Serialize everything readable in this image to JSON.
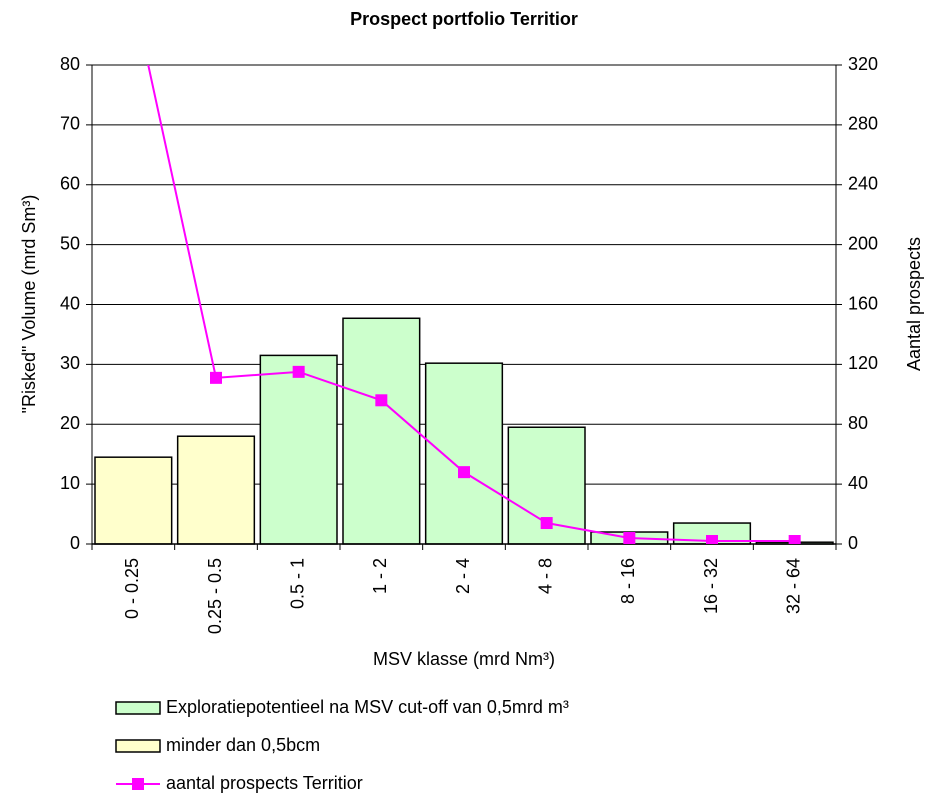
{
  "chart_data": {
    "type": "bar",
    "title": "Prospect portfolio Territior",
    "x_label": "MSV klasse (mrd Nm³)",
    "y_label": "\"Risked\" Volume  (mrd Sm³)",
    "y2_label": "Aantal prospects",
    "categories": [
      "0 - 0.25",
      "0.25 - 0.5",
      "0.5 - 1",
      "1 - 2",
      "2 - 4",
      "4 - 8",
      "8 - 16",
      "16 - 32",
      "32 - 64"
    ],
    "ylim": [
      0,
      80
    ],
    "yticks": [
      0,
      10,
      20,
      30,
      40,
      50,
      60,
      70,
      80
    ],
    "y2lim": [
      0,
      320
    ],
    "y2ticks": [
      0,
      40,
      80,
      120,
      160,
      200,
      240,
      280,
      320
    ],
    "series": [
      {
        "name": "Exploratiepotentieel na MSV cut-off van 0,5mrd m³",
        "color": "#ccffcc",
        "type": "bar",
        "values": [
          null,
          null,
          31.5,
          37.7,
          30.2,
          19.5,
          2,
          3.5,
          0.3
        ]
      },
      {
        "name": "minder dan 0,5bcm",
        "color": "#ffffcc",
        "type": "bar",
        "values": [
          14.5,
          18,
          null,
          null,
          null,
          null,
          null,
          null,
          null
        ]
      },
      {
        "name": "aantal prospects Territior",
        "color": "#ff00ff",
        "type": "line",
        "axis": "y2",
        "values": [
          366,
          111,
          115,
          96,
          48,
          14,
          4,
          2,
          2
        ]
      }
    ]
  }
}
